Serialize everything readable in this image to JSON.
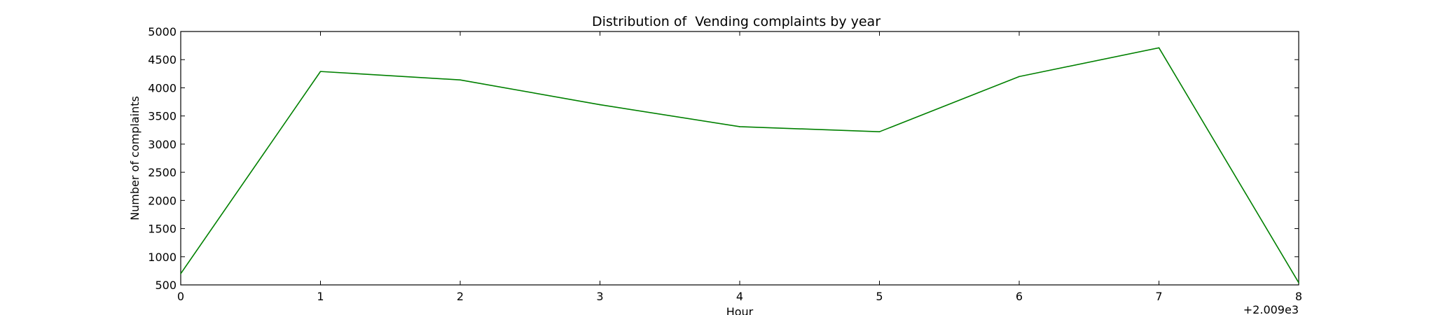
{
  "chart_data": {
    "type": "line",
    "title": "Distribution of  Vending complaints by year",
    "xlabel": "Hour",
    "ylabel": "Number of complaints",
    "x_offset_label": "+2.009e3",
    "x": [
      0,
      1,
      2,
      3,
      4,
      5,
      6,
      7,
      8
    ],
    "x_tick_labels": [
      "0",
      "1",
      "2",
      "3",
      "4",
      "5",
      "6",
      "7",
      "8"
    ],
    "y_tick_labels": [
      "500",
      "1000",
      "1500",
      "2000",
      "2500",
      "3000",
      "3500",
      "4000",
      "4500",
      "5000"
    ],
    "y_ticks": [
      500,
      1000,
      1500,
      2000,
      2500,
      3000,
      3500,
      4000,
      4500,
      5000
    ],
    "xlim": [
      0,
      8
    ],
    "ylim": [
      500,
      5000
    ],
    "grid": false,
    "series": [
      {
        "color": "#008000",
        "values": [
          700,
          4290,
          4140,
          3700,
          3310,
          3220,
          4200,
          4710,
          540
        ]
      }
    ]
  }
}
